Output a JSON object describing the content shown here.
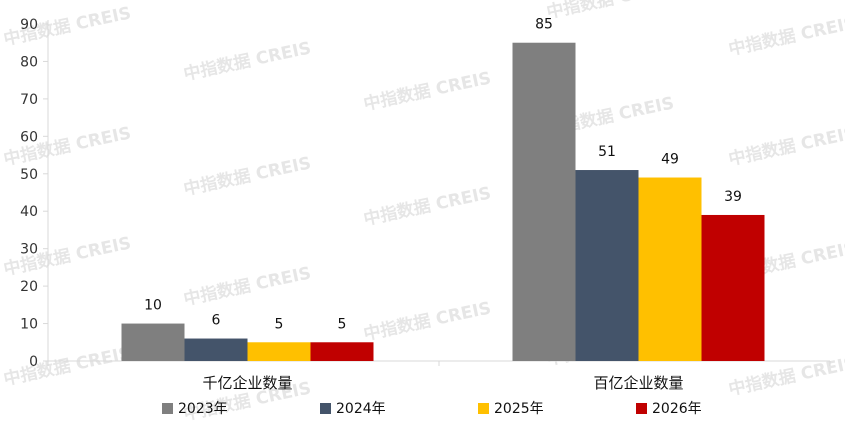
{
  "watermark": {
    "text": "中指数据 CREIS"
  },
  "chart_data": {
    "type": "bar",
    "categories": [
      "千亿企业数量",
      "百亿企业数量"
    ],
    "series": [
      {
        "name": "2023年",
        "color": "#7f7f7f",
        "values": [
          10,
          85
        ]
      },
      {
        "name": "2024年",
        "color": "#44546a",
        "values": [
          6,
          51
        ]
      },
      {
        "name": "2025年",
        "color": "#ffc000",
        "values": [
          5,
          49
        ]
      },
      {
        "name": "2026年",
        "color": "#c00000",
        "values": [
          5,
          39
        ]
      }
    ],
    "ylim": [
      0,
      90
    ],
    "yticks": [
      0,
      10,
      20,
      30,
      40,
      50,
      60,
      70,
      80,
      90
    ],
    "grid": false,
    "legend": "bottom"
  }
}
